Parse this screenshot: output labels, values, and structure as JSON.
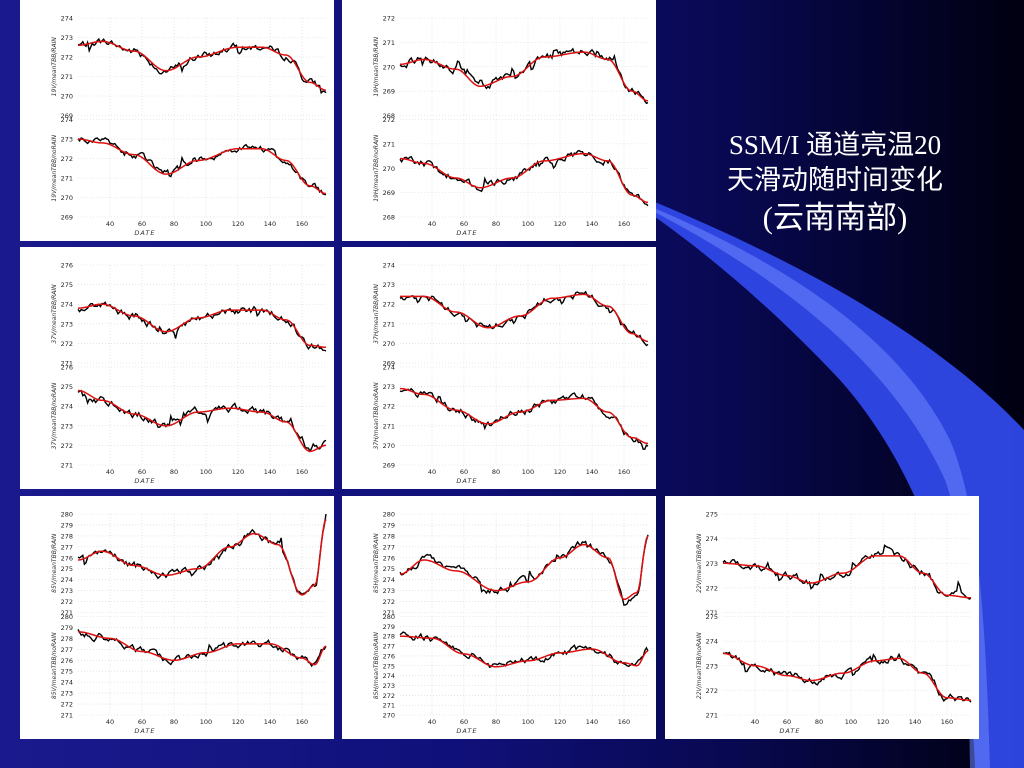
{
  "slide": {
    "title_line1": "SSM/I 通道亮温20",
    "title_line2": "天滑动随时间变化",
    "title_line3": "(云南南部)"
  },
  "colors": {
    "background": "#10107a",
    "observed_line": "#000000",
    "smoothed_line": "#dd1010",
    "swoosh": "#3355ee"
  },
  "chart_data": [
    {
      "type": "line",
      "panel": "top-left",
      "xlabel": "DATE",
      "xlim": [
        20,
        175
      ],
      "xticks": [
        40,
        60,
        80,
        100,
        120,
        140,
        160
      ],
      "subplots": [
        {
          "ylabel": "19V/meanTBB/RAIN",
          "ylim": [
            269,
            274
          ],
          "yticks": [
            269,
            270,
            271,
            272,
            273,
            274
          ],
          "smooth_x": [
            20,
            35,
            55,
            75,
            95,
            120,
            135,
            150,
            165,
            175
          ],
          "smooth_y": [
            272.6,
            272.8,
            272.3,
            271.3,
            272.0,
            272.5,
            272.5,
            272.1,
            270.7,
            270.3
          ]
        },
        {
          "ylabel": "19V/meanTBB/noRAIN",
          "ylim": [
            269,
            274
          ],
          "yticks": [
            269,
            270,
            271,
            272,
            273,
            274
          ],
          "smooth_x": [
            20,
            35,
            55,
            75,
            95,
            120,
            135,
            150,
            165,
            175
          ],
          "smooth_y": [
            273.0,
            272.8,
            272.2,
            271.2,
            271.9,
            272.5,
            272.5,
            271.9,
            270.6,
            270.2
          ]
        }
      ]
    },
    {
      "type": "line",
      "panel": "top-center",
      "xlabel": "DATE",
      "xlim": [
        20,
        175
      ],
      "xticks": [
        40,
        60,
        80,
        100,
        120,
        140,
        160
      ],
      "subplots": [
        {
          "ylabel": "19H/meanTBB/RAIN",
          "ylim": [
            268,
            272
          ],
          "yticks": [
            268,
            269,
            270,
            271,
            272
          ],
          "smooth_x": [
            20,
            35,
            55,
            70,
            90,
            110,
            135,
            150,
            165,
            175
          ],
          "smooth_y": [
            270.1,
            270.3,
            269.9,
            269.2,
            269.6,
            270.4,
            270.6,
            270.3,
            269.0,
            268.6
          ]
        },
        {
          "ylabel": "19H/meanTBB/noRAIN",
          "ylim": [
            268,
            272
          ],
          "yticks": [
            268,
            269,
            270,
            271,
            272
          ],
          "smooth_x": [
            20,
            35,
            55,
            70,
            90,
            110,
            135,
            150,
            165,
            175
          ],
          "smooth_y": [
            270.4,
            270.2,
            269.6,
            269.2,
            269.6,
            270.3,
            270.6,
            270.3,
            268.9,
            268.6
          ]
        }
      ]
    },
    {
      "type": "line",
      "panel": "middle-left",
      "xlabel": "DATE",
      "xlim": [
        20,
        175
      ],
      "xticks": [
        40,
        60,
        80,
        100,
        120,
        140,
        160
      ],
      "subplots": [
        {
          "ylabel": "37V/meanTBB/RAIN",
          "ylim": [
            271,
            276
          ],
          "yticks": [
            271,
            272,
            273,
            274,
            275,
            276
          ],
          "smooth_x": [
            20,
            35,
            55,
            75,
            95,
            115,
            135,
            150,
            165,
            175
          ],
          "smooth_y": [
            273.8,
            274.0,
            273.4,
            272.6,
            273.3,
            273.7,
            273.7,
            273.2,
            271.9,
            271.8
          ]
        },
        {
          "ylabel": "37V/meanTBB/noRAIN",
          "ylim": [
            271,
            276
          ],
          "yticks": [
            271,
            272,
            273,
            274,
            275,
            276
          ],
          "smooth_x": [
            20,
            35,
            55,
            75,
            95,
            115,
            135,
            150,
            165,
            175
          ],
          "smooth_y": [
            274.8,
            274.3,
            273.6,
            273.0,
            273.7,
            273.9,
            273.7,
            273.2,
            271.7,
            272.0
          ]
        }
      ]
    },
    {
      "type": "line",
      "panel": "middle-center",
      "xlabel": "DATE",
      "xlim": [
        20,
        175
      ],
      "xticks": [
        40,
        60,
        80,
        100,
        120,
        140,
        160
      ],
      "subplots": [
        {
          "ylabel": "37H/meanTBB/RAIN",
          "ylim": [
            269,
            274
          ],
          "yticks": [
            269,
            270,
            271,
            272,
            273,
            274
          ],
          "smooth_x": [
            20,
            35,
            55,
            75,
            95,
            115,
            135,
            150,
            165,
            175
          ],
          "smooth_y": [
            272.4,
            272.4,
            271.6,
            270.8,
            271.4,
            272.3,
            272.5,
            271.9,
            270.5,
            270.1
          ]
        },
        {
          "ylabel": "37H/meanTBB/noRAIN",
          "ylim": [
            269,
            274
          ],
          "yticks": [
            269,
            270,
            271,
            272,
            273,
            274
          ],
          "smooth_x": [
            20,
            35,
            55,
            75,
            95,
            115,
            135,
            150,
            165,
            175
          ],
          "smooth_y": [
            272.9,
            272.6,
            271.8,
            271.1,
            271.7,
            272.3,
            272.4,
            271.7,
            270.4,
            270.1
          ]
        }
      ]
    },
    {
      "type": "line",
      "panel": "bottom-left",
      "xlabel": "DATE",
      "xlim": [
        20,
        175
      ],
      "xticks": [
        40,
        60,
        80,
        100,
        120,
        140,
        160
      ],
      "subplots": [
        {
          "ylabel": "85V/meanTBB/RAIN",
          "ylim": [
            271,
            280
          ],
          "yticks": [
            271,
            272,
            273,
            274,
            275,
            276,
            277,
            278,
            279,
            280
          ],
          "smooth_x": [
            20,
            35,
            55,
            75,
            95,
            115,
            130,
            145,
            160,
            168,
            175
          ],
          "smooth_y": [
            275.8,
            276.6,
            275.3,
            274.4,
            275.0,
            277.0,
            278.2,
            277.2,
            272.6,
            273.5,
            279.5
          ]
        },
        {
          "ylabel": "85V/meanTBB/noRAIN",
          "ylim": [
            271,
            280
          ],
          "yticks": [
            271,
            272,
            273,
            274,
            275,
            276,
            277,
            278,
            279,
            280
          ],
          "smooth_x": [
            20,
            40,
            60,
            80,
            100,
            120,
            140,
            160,
            168,
            175
          ],
          "smooth_y": [
            278.6,
            278.0,
            276.8,
            276.0,
            276.7,
            277.5,
            277.5,
            276.2,
            275.6,
            277.3
          ]
        }
      ]
    },
    {
      "type": "line",
      "panel": "bottom-center",
      "xlabel": "DATE",
      "xlim": [
        20,
        175
      ],
      "xticks": [
        40,
        60,
        80,
        100,
        120,
        140,
        160
      ],
      "subplots": [
        {
          "ylabel": "85H/meanTBB/RAIN",
          "ylim": [
            271,
            280
          ],
          "yticks": [
            271,
            272,
            273,
            274,
            275,
            276,
            277,
            278,
            279,
            280
          ],
          "smooth_x": [
            20,
            35,
            55,
            80,
            100,
            120,
            135,
            150,
            160,
            168,
            175
          ],
          "smooth_y": [
            274.5,
            275.8,
            274.8,
            273.0,
            273.8,
            276.0,
            277.2,
            276.0,
            272.2,
            272.8,
            278.0
          ]
        },
        {
          "ylabel": "85H/meanTBB/noRAIN",
          "ylim": [
            270,
            280
          ],
          "yticks": [
            270,
            271,
            272,
            273,
            274,
            275,
            276,
            277,
            278,
            279,
            280
          ],
          "smooth_x": [
            20,
            40,
            60,
            80,
            100,
            120,
            140,
            160,
            168,
            175
          ],
          "smooth_y": [
            278.0,
            277.8,
            276.2,
            274.9,
            275.5,
            276.3,
            276.7,
            275.3,
            275.0,
            276.5
          ]
        }
      ]
    },
    {
      "type": "line",
      "panel": "bottom-right",
      "xlabel": "DATE",
      "xlim": [
        20,
        175
      ],
      "xticks": [
        40,
        60,
        80,
        100,
        120,
        140,
        160
      ],
      "subplots": [
        {
          "ylabel": "22V/meanTBB/RAIN",
          "ylim": [
            271,
            275
          ],
          "yticks": [
            271,
            272,
            273,
            274,
            275
          ],
          "smooth_x": [
            20,
            40,
            60,
            75,
            95,
            115,
            130,
            145,
            160,
            175
          ],
          "smooth_y": [
            273.0,
            272.9,
            272.5,
            272.2,
            272.6,
            273.3,
            273.3,
            272.6,
            271.7,
            271.6
          ]
        },
        {
          "ylabel": "22V/meanTBB/noRAIN",
          "ylim": [
            271,
            275
          ],
          "yticks": [
            271,
            272,
            273,
            274,
            275
          ],
          "smooth_x": [
            20,
            40,
            60,
            75,
            95,
            115,
            130,
            145,
            160,
            175
          ],
          "smooth_y": [
            273.5,
            273.0,
            272.6,
            272.4,
            272.7,
            273.2,
            273.3,
            272.7,
            271.7,
            271.6
          ]
        }
      ]
    }
  ]
}
